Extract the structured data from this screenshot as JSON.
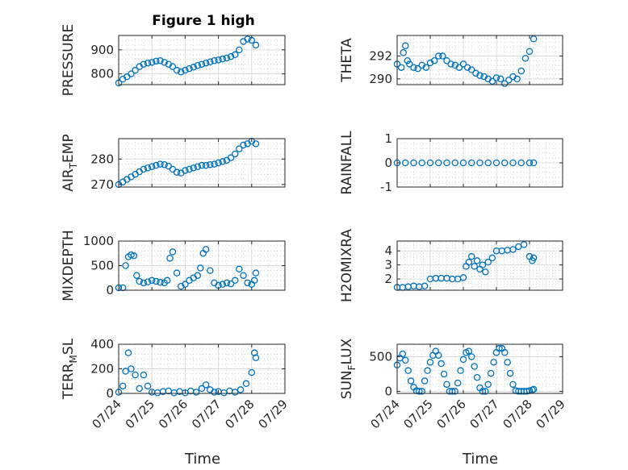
{
  "figure_title": "Figure 1 high",
  "x_axis_label": "Time",
  "x_tick_labels": [
    "07/24",
    "07/25",
    "07/26",
    "07/27",
    "07/28",
    "07/29"
  ],
  "marker_color": "#0072BD",
  "panels": [
    {
      "id": "pressure",
      "ylabel": "PRESSURE",
      "yticks": [
        {
          "v": 800,
          "label": "800"
        },
        {
          "v": 900,
          "label": "900"
        }
      ]
    },
    {
      "id": "theta",
      "ylabel": "THETA",
      "yticks": [
        {
          "v": 290,
          "label": "290"
        },
        {
          "v": 292,
          "label": "292"
        }
      ]
    },
    {
      "id": "air_temp",
      "ylabel": "AIR_TEMP",
      "ylabel_parts": [
        "AIR",
        "T",
        "EMP"
      ],
      "yticks": [
        {
          "v": 270,
          "label": "270"
        },
        {
          "v": 280,
          "label": "280"
        }
      ]
    },
    {
      "id": "rainfall",
      "ylabel": "RAINFALL",
      "yticks": [
        {
          "v": -1,
          "label": "-1"
        },
        {
          "v": 0,
          "label": "0"
        },
        {
          "v": 1,
          "label": "1"
        }
      ]
    },
    {
      "id": "mixdepth",
      "ylabel": "MIXDEPTH",
      "yticks": [
        {
          "v": 0,
          "label": "0"
        },
        {
          "v": 500,
          "label": "500"
        },
        {
          "v": 1000,
          "label": "1000"
        }
      ]
    },
    {
      "id": "h2omixra",
      "ylabel": "H2OMIXRA",
      "yticks": [
        {
          "v": 2,
          "label": "2"
        },
        {
          "v": 3,
          "label": "3"
        },
        {
          "v": 4,
          "label": "4"
        }
      ]
    },
    {
      "id": "terr_msl",
      "ylabel": "TERR_MSL",
      "ylabel_parts": [
        "TERR",
        "M",
        "SL"
      ],
      "yticks": [
        {
          "v": 0,
          "label": "0"
        },
        {
          "v": 200,
          "label": "200"
        },
        {
          "v": 400,
          "label": "400"
        }
      ]
    },
    {
      "id": "sun_flux",
      "ylabel": "SUN_FLUX",
      "ylabel_parts": [
        "SUN",
        "F",
        "LUX"
      ],
      "yticks": [
        {
          "v": 0,
          "label": "0"
        },
        {
          "v": 500,
          "label": "500"
        }
      ]
    }
  ],
  "chart_data": [
    {
      "type": "scatter",
      "id": "pressure",
      "ylabel": "PRESSURE",
      "title": "Figure 1 high",
      "xlabel": "",
      "xlim": [
        "07/24",
        "07/29"
      ],
      "ylim": [
        755,
        960
      ],
      "grid": true,
      "x": [
        "07/24 00:00",
        "07/24 03:00",
        "07/24 06:00",
        "07/24 09:00",
        "07/24 12:00",
        "07/24 15:00",
        "07/24 18:00",
        "07/24 21:00",
        "07/25 00:00",
        "07/25 03:00",
        "07/25 06:00",
        "07/25 09:00",
        "07/25 12:00",
        "07/25 15:00",
        "07/25 18:00",
        "07/25 21:00",
        "07/26 00:00",
        "07/26 03:00",
        "07/26 06:00",
        "07/26 09:00",
        "07/26 12:00",
        "07/26 15:00",
        "07/26 18:00",
        "07/26 21:00",
        "07/27 00:00",
        "07/27 03:00",
        "07/27 06:00",
        "07/27 09:00",
        "07/27 12:00",
        "07/27 15:00",
        "07/27 18:00",
        "07/27 21:00",
        "07/28 00:00",
        "07/28 03:00"
      ],
      "values": [
        762,
        778,
        788,
        800,
        815,
        830,
        840,
        845,
        848,
        853,
        855,
        848,
        840,
        830,
        815,
        808,
        815,
        822,
        828,
        835,
        840,
        845,
        850,
        855,
        858,
        862,
        866,
        872,
        880,
        900,
        935,
        945,
        940,
        920
      ]
    },
    {
      "type": "scatter",
      "id": "theta",
      "ylabel": "THETA",
      "xlim": [
        "07/24",
        "07/29"
      ],
      "ylim": [
        289.5,
        293.8
      ],
      "grid": true,
      "x": [
        "07/24 00:00",
        "07/24 03:00",
        "07/24 04:30",
        "07/24 06:00",
        "07/24 07:30",
        "07/24 09:00",
        "07/24 12:00",
        "07/24 15:00",
        "07/24 18:00",
        "07/24 21:00",
        "07/25 00:00",
        "07/25 03:00",
        "07/25 06:00",
        "07/25 09:00",
        "07/25 12:00",
        "07/25 15:00",
        "07/25 18:00",
        "07/25 21:00",
        "07/26 00:00",
        "07/26 03:00",
        "07/26 06:00",
        "07/26 09:00",
        "07/26 12:00",
        "07/26 15:00",
        "07/26 18:00",
        "07/26 21:00",
        "07/27 00:00",
        "07/27 03:00",
        "07/27 06:00",
        "07/27 09:00",
        "07/27 12:00",
        "07/27 15:00",
        "07/27 18:00",
        "07/27 21:00",
        "07/28 00:00",
        "07/28 03:00"
      ],
      "values": [
        291.3,
        291.0,
        292.3,
        292.9,
        291.6,
        291.3,
        291.0,
        290.9,
        291.2,
        291.0,
        291.4,
        291.6,
        292.0,
        292.0,
        291.6,
        291.3,
        291.2,
        291.0,
        291.3,
        291.0,
        290.8,
        290.5,
        290.3,
        290.2,
        290.0,
        289.8,
        290.1,
        290.0,
        289.6,
        289.9,
        290.2,
        290.0,
        290.7,
        291.8,
        292.4,
        293.5
      ]
    },
    {
      "type": "scatter",
      "id": "air_temp",
      "ylabel": "AIR_TEMP",
      "xlim": [
        "07/24",
        "07/29"
      ],
      "ylim": [
        269,
        288
      ],
      "grid": true,
      "x": [
        "07/24 00:00",
        "07/24 03:00",
        "07/24 06:00",
        "07/24 09:00",
        "07/24 12:00",
        "07/24 15:00",
        "07/24 18:00",
        "07/24 21:00",
        "07/25 00:00",
        "07/25 03:00",
        "07/25 06:00",
        "07/25 09:00",
        "07/25 12:00",
        "07/25 15:00",
        "07/25 18:00",
        "07/25 21:00",
        "07/26 00:00",
        "07/26 03:00",
        "07/26 06:00",
        "07/26 09:00",
        "07/26 12:00",
        "07/26 15:00",
        "07/26 18:00",
        "07/26 21:00",
        "07/27 00:00",
        "07/27 03:00",
        "07/27 06:00",
        "07/27 09:00",
        "07/27 12:00",
        "07/27 15:00",
        "07/27 18:00",
        "07/27 21:00",
        "07/28 00:00",
        "07/28 03:00"
      ],
      "values": [
        270,
        271,
        272,
        273,
        274,
        275,
        276,
        276.5,
        277,
        277.5,
        278,
        277.8,
        277.2,
        276,
        274.8,
        274.5,
        275.5,
        276,
        276.5,
        277,
        277.5,
        277.5,
        277.8,
        278,
        278.5,
        279,
        279.5,
        280.5,
        282,
        284,
        285.5,
        286,
        287,
        286
      ]
    },
    {
      "type": "scatter",
      "id": "rainfall",
      "ylabel": "RAINFALL",
      "xlim": [
        "07/24",
        "07/29"
      ],
      "ylim": [
        -1,
        1
      ],
      "grid": true,
      "x": [
        "07/24 00:00",
        "07/24 06:00",
        "07/24 12:00",
        "07/24 18:00",
        "07/25 00:00",
        "07/25 06:00",
        "07/25 12:00",
        "07/25 18:00",
        "07/26 00:00",
        "07/26 06:00",
        "07/26 12:00",
        "07/26 18:00",
        "07/27 00:00",
        "07/27 06:00",
        "07/27 12:00",
        "07/27 18:00",
        "07/28 00:00",
        "07/28 03:00"
      ],
      "values": [
        0,
        0,
        0,
        0,
        0,
        0,
        0,
        0,
        0,
        0,
        0,
        0,
        0,
        0,
        0,
        0,
        0,
        0
      ]
    },
    {
      "type": "scatter",
      "id": "mixdepth",
      "ylabel": "MIXDEPTH",
      "xlim": [
        "07/24",
        "07/29"
      ],
      "ylim": [
        0,
        1000
      ],
      "grid": true,
      "x": [
        "07/24 00:00",
        "07/24 03:00",
        "07/24 05:00",
        "07/24 07:00",
        "07/24 09:00",
        "07/24 11:00",
        "07/24 13:00",
        "07/24 15:00",
        "07/24 18:00",
        "07/24 21:00",
        "07/25 00:00",
        "07/25 03:00",
        "07/25 06:00",
        "07/25 09:00",
        "07/25 11:00",
        "07/25 13:00",
        "07/25 15:00",
        "07/25 18:00",
        "07/25 21:00",
        "07/26 00:00",
        "07/26 03:00",
        "07/26 06:00",
        "07/26 09:00",
        "07/26 11:00",
        "07/26 13:00",
        "07/26 15:00",
        "07/26 18:00",
        "07/26 21:00",
        "07/27 00:00",
        "07/27 03:00",
        "07/27 06:00",
        "07/27 09:00",
        "07/27 12:00",
        "07/27 15:00",
        "07/27 18:00",
        "07/27 21:00",
        "07/28 00:00",
        "07/28 02:00",
        "07/28 03:00"
      ],
      "values": [
        50,
        50,
        500,
        680,
        720,
        700,
        300,
        180,
        150,
        170,
        200,
        180,
        160,
        150,
        200,
        650,
        780,
        350,
        80,
        120,
        200,
        250,
        300,
        450,
        750,
        830,
        400,
        150,
        100,
        120,
        150,
        130,
        200,
        430,
        300,
        150,
        120,
        200,
        350
      ]
    },
    {
      "type": "scatter",
      "id": "h2omixra",
      "ylabel": "H2OMIXRA",
      "xlim": [
        "07/24",
        "07/29"
      ],
      "ylim": [
        1.2,
        4.7
      ],
      "grid": true,
      "x": [
        "07/24 00:00",
        "07/24 04:00",
        "07/24 08:00",
        "07/24 12:00",
        "07/24 16:00",
        "07/24 20:00",
        "07/25 00:00",
        "07/25 04:00",
        "07/25 08:00",
        "07/25 12:00",
        "07/25 16:00",
        "07/25 20:00",
        "07/26 00:00",
        "07/26 02:00",
        "07/26 04:00",
        "07/26 06:00",
        "07/26 08:00",
        "07/26 10:00",
        "07/26 12:00",
        "07/26 14:00",
        "07/26 16:00",
        "07/26 18:00",
        "07/26 21:00",
        "07/27 00:00",
        "07/27 04:00",
        "07/27 08:00",
        "07/27 12:00",
        "07/27 16:00",
        "07/27 20:00",
        "07/28 00:00",
        "07/28 02:00",
        "07/28 03:00"
      ],
      "values": [
        1.4,
        1.4,
        1.45,
        1.5,
        1.45,
        1.5,
        2.0,
        2.05,
        2.05,
        2.05,
        2.0,
        2.0,
        2.1,
        2.9,
        3.2,
        3.6,
        2.9,
        3.3,
        2.7,
        3.0,
        2.5,
        3.2,
        3.5,
        4.0,
        4.0,
        4.05,
        4.1,
        4.3,
        4.45,
        3.6,
        3.3,
        3.5
      ]
    },
    {
      "type": "scatter",
      "id": "terr_msl",
      "ylabel": "TERR_MSL",
      "xlim": [
        "07/24",
        "07/29"
      ],
      "ylim": [
        0,
        400
      ],
      "grid": true,
      "x": [
        "07/24 00:00",
        "07/24 03:00",
        "07/24 05:00",
        "07/24 07:00",
        "07/24 09:00",
        "07/24 12:00",
        "07/24 15:00",
        "07/24 18:00",
        "07/24 21:00",
        "07/25 00:00",
        "07/25 04:00",
        "07/25 08:00",
        "07/25 12:00",
        "07/25 16:00",
        "07/25 20:00",
        "07/26 00:00",
        "07/26 04:00",
        "07/26 08:00",
        "07/26 12:00",
        "07/26 15:00",
        "07/26 18:00",
        "07/26 21:00",
        "07/27 00:00",
        "07/27 04:00",
        "07/27 08:00",
        "07/27 12:00",
        "07/27 16:00",
        "07/27 20:00",
        "07/28 00:00",
        "07/28 02:00",
        "07/28 03:00"
      ],
      "values": [
        10,
        60,
        180,
        330,
        200,
        150,
        40,
        150,
        60,
        10,
        5,
        15,
        20,
        5,
        15,
        5,
        20,
        10,
        40,
        70,
        30,
        10,
        15,
        5,
        20,
        10,
        30,
        80,
        170,
        330,
        290
      ]
    },
    {
      "type": "scatter",
      "id": "sun_flux",
      "ylabel": "SUN_FLUX",
      "xlim": [
        "07/24",
        "07/29"
      ],
      "ylim": [
        -30,
        680
      ],
      "grid": true,
      "x": [
        "07/24 00:00",
        "07/24 02:00",
        "07/24 04:00",
        "07/24 06:00",
        "07/24 08:00",
        "07/24 10:00",
        "07/24 12:00",
        "07/24 14:00",
        "07/24 16:00",
        "07/24 18:00",
        "07/24 20:00",
        "07/24 22:00",
        "07/25 00:00",
        "07/25 02:00",
        "07/25 04:00",
        "07/25 06:00",
        "07/25 08:00",
        "07/25 10:00",
        "07/25 12:00",
        "07/25 14:00",
        "07/25 16:00",
        "07/25 18:00",
        "07/25 20:00",
        "07/25 22:00",
        "07/26 00:00",
        "07/26 02:00",
        "07/26 04:00",
        "07/26 06:00",
        "07/26 08:00",
        "07/26 10:00",
        "07/26 12:00",
        "07/26 14:00",
        "07/26 16:00",
        "07/26 18:00",
        "07/26 20:00",
        "07/26 22:00",
        "07/27 00:00",
        "07/27 02:00",
        "07/27 04:00",
        "07/27 06:00",
        "07/27 08:00",
        "07/27 10:00",
        "07/27 12:00",
        "07/27 14:00",
        "07/27 16:00",
        "07/27 18:00",
        "07/27 20:00",
        "07/27 22:00",
        "07/28 00:00",
        "07/28 02:00",
        "07/28 03:00"
      ],
      "values": [
        380,
        480,
        540,
        450,
        300,
        150,
        60,
        10,
        0,
        0,
        150,
        300,
        420,
        520,
        580,
        520,
        400,
        250,
        100,
        0,
        0,
        0,
        120,
        300,
        460,
        560,
        580,
        500,
        360,
        200,
        50,
        0,
        0,
        100,
        260,
        420,
        560,
        620,
        620,
        560,
        420,
        260,
        100,
        10,
        0,
        0,
        0,
        0,
        10,
        20,
        30
      ]
    }
  ]
}
